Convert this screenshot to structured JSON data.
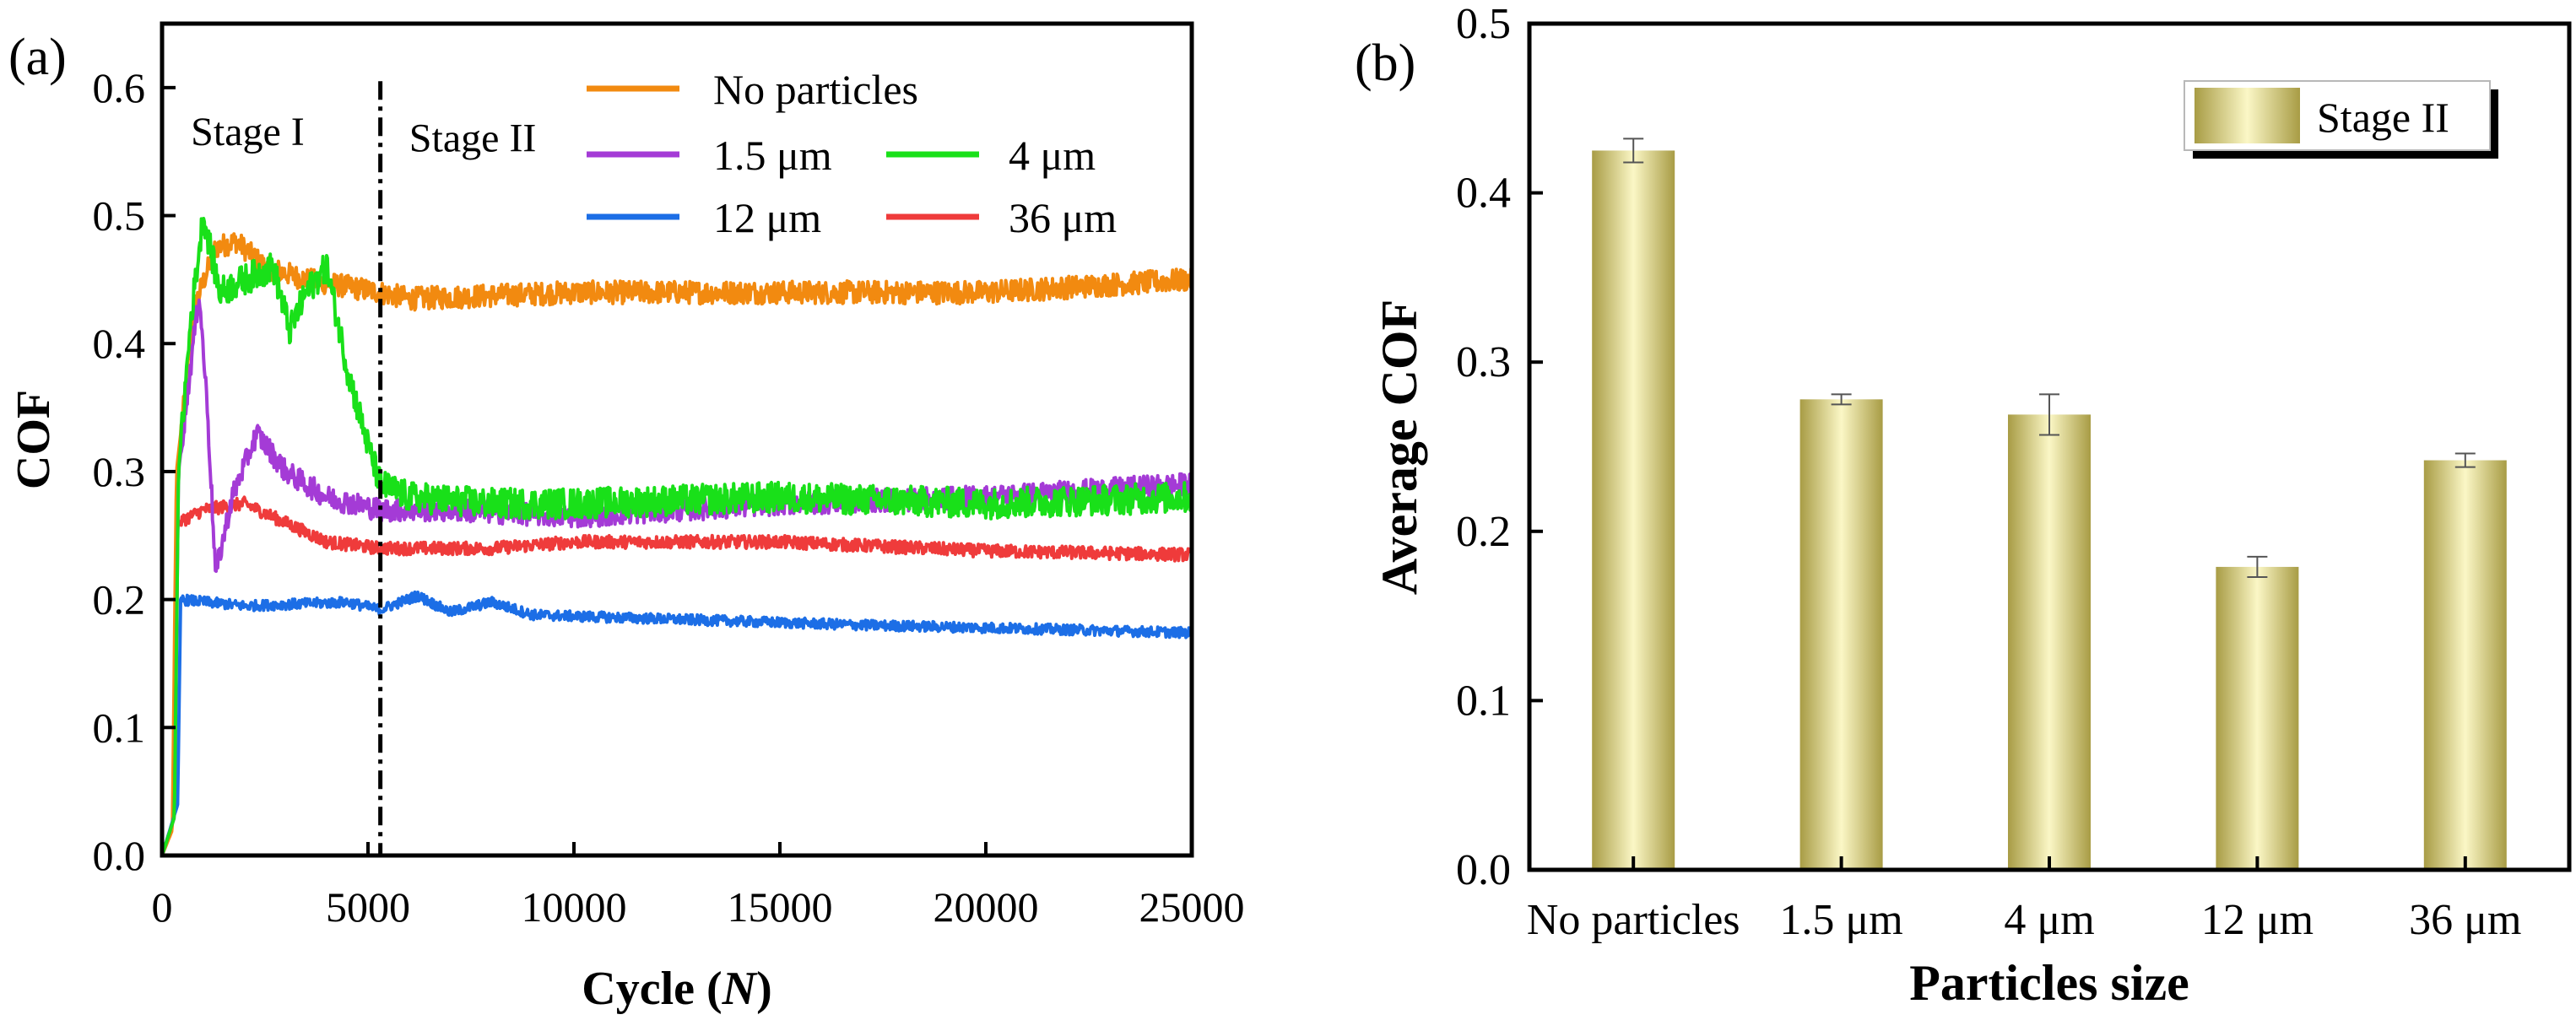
{
  "colors": {
    "no_particles": "#f28a10",
    "p1_5": "#a43bd6",
    "p4": "#19e019",
    "p12": "#1c6ee6",
    "p36": "#ef3b3b",
    "bar_dark": "#a89c45",
    "bar_light": "#fbf7c6"
  },
  "chart_data": [
    {
      "type": "line",
      "panel_label": "(a)",
      "xlabel_main": "Cycle (",
      "xlabel_var": "N",
      "xlabel_end": ")",
      "ylabel": "COF",
      "xlim": [
        0,
        25000
      ],
      "ylim": [
        0,
        0.65
      ],
      "x_ticks": [
        0,
        5000,
        10000,
        15000,
        20000,
        25000
      ],
      "x_tick_labels": [
        "0",
        "5000",
        "10000",
        "15000",
        "20000",
        "25000"
      ],
      "y_ticks": [
        0,
        0.1,
        0.2,
        0.3,
        0.4,
        0.5,
        0.6
      ],
      "y_tick_labels": [
        "0.0",
        "0.1",
        "0.2",
        "0.3",
        "0.4",
        "0.5",
        "0.6"
      ],
      "stage_divider_x": 5300,
      "stage_labels": [
        "Stage I",
        "Stage II"
      ],
      "series": [
        {
          "name": "No particles",
          "color_key": "no_particles",
          "noise": 0.009,
          "points": [
            [
              0,
              0
            ],
            [
              250,
              0.02
            ],
            [
              350,
              0.3
            ],
            [
              800,
              0.43
            ],
            [
              1300,
              0.475
            ],
            [
              1800,
              0.48
            ],
            [
              2500,
              0.46
            ],
            [
              3500,
              0.45
            ],
            [
              5300,
              0.44
            ],
            [
              6000,
              0.435
            ],
            [
              10000,
              0.44
            ],
            [
              15000,
              0.44
            ],
            [
              20000,
              0.44
            ],
            [
              25000,
              0.45
            ]
          ]
        },
        {
          "name": "1.5 μm",
          "color_key": "p1_5",
          "noise": 0.009,
          "points": [
            [
              0,
              0
            ],
            [
              300,
              0.03
            ],
            [
              400,
              0.3
            ],
            [
              900,
              0.44
            ],
            [
              1100,
              0.35
            ],
            [
              1300,
              0.22
            ],
            [
              1700,
              0.28
            ],
            [
              2300,
              0.33
            ],
            [
              3000,
              0.3
            ],
            [
              4000,
              0.28
            ],
            [
              5300,
              0.27
            ],
            [
              7000,
              0.27
            ],
            [
              10000,
              0.265
            ],
            [
              15000,
              0.275
            ],
            [
              20000,
              0.28
            ],
            [
              25000,
              0.29
            ]
          ]
        },
        {
          "name": "4 μm",
          "color_key": "p4",
          "noise": 0.012,
          "points": [
            [
              0,
              0
            ],
            [
              300,
              0.03
            ],
            [
              400,
              0.3
            ],
            [
              700,
              0.42
            ],
            [
              1000,
              0.5
            ],
            [
              1400,
              0.44
            ],
            [
              2000,
              0.45
            ],
            [
              2700,
              0.46
            ],
            [
              3100,
              0.41
            ],
            [
              3500,
              0.44
            ],
            [
              4000,
              0.46
            ],
            [
              4500,
              0.38
            ],
            [
              5000,
              0.32
            ],
            [
              5300,
              0.29
            ],
            [
              6000,
              0.28
            ],
            [
              8000,
              0.275
            ],
            [
              10000,
              0.275
            ],
            [
              15000,
              0.28
            ],
            [
              20000,
              0.275
            ],
            [
              25000,
              0.28
            ]
          ]
        },
        {
          "name": "12 μm",
          "color_key": "p12",
          "noise": 0.004,
          "points": [
            [
              0,
              0
            ],
            [
              380,
              0.04
            ],
            [
              450,
              0.2
            ],
            [
              2000,
              0.195
            ],
            [
              4500,
              0.198
            ],
            [
              5300,
              0.192
            ],
            [
              6200,
              0.203
            ],
            [
              7000,
              0.19
            ],
            [
              8000,
              0.198
            ],
            [
              9000,
              0.188
            ],
            [
              12000,
              0.185
            ],
            [
              17000,
              0.18
            ],
            [
              20000,
              0.178
            ],
            [
              25000,
              0.174
            ]
          ]
        },
        {
          "name": "36 μm",
          "color_key": "p36",
          "noise": 0.005,
          "points": [
            [
              0,
              0
            ],
            [
              300,
              0.03
            ],
            [
              380,
              0.26
            ],
            [
              1000,
              0.27
            ],
            [
              2000,
              0.275
            ],
            [
              3000,
              0.26
            ],
            [
              4000,
              0.245
            ],
            [
              5300,
              0.24
            ],
            [
              8000,
              0.24
            ],
            [
              10000,
              0.245
            ],
            [
              15000,
              0.245
            ],
            [
              20000,
              0.238
            ],
            [
              25000,
              0.235
            ]
          ]
        }
      ]
    },
    {
      "type": "bar",
      "panel_label": "(b)",
      "xlabel": "Particles size",
      "ylabel": "Average COF",
      "ylim": [
        0,
        0.5
      ],
      "y_ticks": [
        0,
        0.1,
        0.2,
        0.3,
        0.4,
        0.5
      ],
      "y_tick_labels": [
        "0.0",
        "0.1",
        "0.2",
        "0.3",
        "0.4",
        "0.5"
      ],
      "categories": [
        "No particles",
        "1.5 μm",
        "4 μm",
        "12 μm",
        "36 μm"
      ],
      "values": [
        0.425,
        0.278,
        0.269,
        0.179,
        0.242
      ],
      "errors": [
        0.007,
        0.003,
        0.012,
        0.006,
        0.004
      ],
      "legend": "Stage II",
      "legend_position": "top-right"
    }
  ]
}
